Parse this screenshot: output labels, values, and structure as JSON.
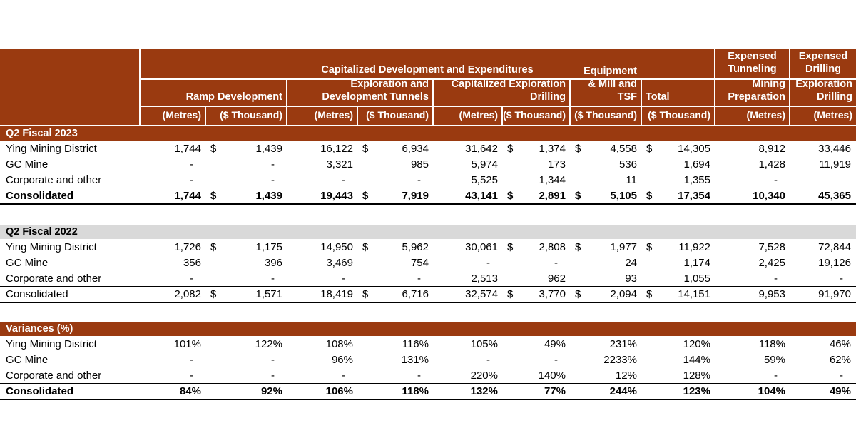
{
  "colors": {
    "header_bg": "#9A3A10",
    "section_gray_bg": "#D9D9D9",
    "header_text": "#FFFFFF"
  },
  "header": {
    "group_main": "Capitalized Development and Expenditures",
    "group_tunneling": "Expensed Tunneling",
    "group_drilling": "Expensed Drilling",
    "sub": {
      "ramp": "Ramp Development",
      "tunnels": "Exploration and Development Tunnels",
      "cap_drilling": "Capitalized Exploration Drilling",
      "equipment": "Equipment & Mill and TSF",
      "total": "Total",
      "mining_prep": "Mining Preparation",
      "expl_drilling": "Exploration Drilling"
    },
    "units": [
      "(Metres)",
      "($ Thousand)",
      "(Metres)",
      "($ Thousand)",
      "(Metres)",
      "($ Thousand)",
      "($ Thousand)",
      "($ Thousand)",
      "(Metres)",
      "(Metres)"
    ]
  },
  "sections": [
    {
      "title": "Q2 Fiscal 2023",
      "rows": [
        {
          "label": "Ying Mining District",
          "cells": [
            {
              "v": "1,744"
            },
            {
              "d": "$",
              "v": "1,439"
            },
            {
              "v": "16,122"
            },
            {
              "d": "$",
              "v": "6,934"
            },
            {
              "v": "31,642"
            },
            {
              "d": "$",
              "v": "1,374"
            },
            {
              "d": "$",
              "v": "4,558"
            },
            {
              "d": "$",
              "v": "14,305"
            },
            {
              "v": "8,912"
            },
            {
              "v": "33,446"
            }
          ]
        },
        {
          "label": "GC Mine",
          "cells": [
            {
              "v": "-"
            },
            {
              "v": "-"
            },
            {
              "v": "3,321"
            },
            {
              "v": "985"
            },
            {
              "v": "5,974"
            },
            {
              "v": "173"
            },
            {
              "v": "536"
            },
            {
              "v": "1,694"
            },
            {
              "v": "1,428"
            },
            {
              "v": "11,919"
            }
          ]
        },
        {
          "label": "Corporate and other",
          "cells": [
            {
              "v": "-"
            },
            {
              "v": "-"
            },
            {
              "v": "-"
            },
            {
              "v": "-"
            },
            {
              "v": "5,525"
            },
            {
              "v": "1,344"
            },
            {
              "v": "11"
            },
            {
              "v": "1,355"
            },
            {
              "v": "-"
            },
            {
              "v": ""
            }
          ]
        },
        {
          "label": "Consolidated",
          "cells": [
            {
              "v": "1,744"
            },
            {
              "d": "$",
              "v": "1,439"
            },
            {
              "v": "19,443"
            },
            {
              "d": "$",
              "v": "7,919"
            },
            {
              "v": "43,141"
            },
            {
              "d": "$",
              "v": "2,891"
            },
            {
              "d": "$",
              "v": "5,105"
            },
            {
              "d": "$",
              "v": "17,354"
            },
            {
              "v": "10,340"
            },
            {
              "v": "45,365"
            }
          ]
        }
      ]
    },
    {
      "title": "Q2 Fiscal 2022",
      "rows": [
        {
          "label": "Ying Mining District",
          "cells": [
            {
              "v": "1,726"
            },
            {
              "d": "$",
              "v": "1,175"
            },
            {
              "v": "14,950"
            },
            {
              "d": "$",
              "v": "5,962"
            },
            {
              "v": "30,061"
            },
            {
              "d": "$",
              "v": "2,808"
            },
            {
              "d": "$",
              "v": "1,977"
            },
            {
              "d": "$",
              "v": "11,922"
            },
            {
              "v": "7,528"
            },
            {
              "v": "72,844"
            }
          ]
        },
        {
          "label": "GC Mine",
          "cells": [
            {
              "v": "356"
            },
            {
              "v": "396"
            },
            {
              "v": "3,469"
            },
            {
              "v": "754"
            },
            {
              "v": "-"
            },
            {
              "v": "-"
            },
            {
              "v": "24"
            },
            {
              "v": "1,174"
            },
            {
              "v": "2,425"
            },
            {
              "v": "19,126"
            }
          ]
        },
        {
          "label": "Corporate and other",
          "cells": [
            {
              "v": "-"
            },
            {
              "v": "-"
            },
            {
              "v": "-"
            },
            {
              "v": "-"
            },
            {
              "v": "2,513"
            },
            {
              "v": "962"
            },
            {
              "v": "93"
            },
            {
              "v": "1,055"
            },
            {
              "v": "-"
            },
            {
              "v": "-"
            }
          ]
        },
        {
          "label": "Consolidated",
          "cells": [
            {
              "v": "2,082"
            },
            {
              "d": "$",
              "v": "1,571"
            },
            {
              "v": "18,419"
            },
            {
              "d": "$",
              "v": "6,716"
            },
            {
              "v": "32,574"
            },
            {
              "d": "$",
              "v": "3,770"
            },
            {
              "d": "$",
              "v": "2,094"
            },
            {
              "d": "$",
              "v": "14,151"
            },
            {
              "v": "9,953"
            },
            {
              "v": "91,970"
            }
          ]
        }
      ]
    },
    {
      "title": "Variances (%)",
      "rows": [
        {
          "label": "Ying Mining District",
          "cells": [
            {
              "v": "101%"
            },
            {
              "v": "122%"
            },
            {
              "v": "108%"
            },
            {
              "v": "116%"
            },
            {
              "v": "105%"
            },
            {
              "v": "49%"
            },
            {
              "v": "231%"
            },
            {
              "v": "120%"
            },
            {
              "v": "118%"
            },
            {
              "v": "46%"
            }
          ]
        },
        {
          "label": "GC Mine",
          "cells": [
            {
              "v": "-"
            },
            {
              "v": "-"
            },
            {
              "v": "96%"
            },
            {
              "v": "131%"
            },
            {
              "v": "-"
            },
            {
              "v": "-"
            },
            {
              "v": "2233%"
            },
            {
              "v": "144%"
            },
            {
              "v": "59%"
            },
            {
              "v": "62%"
            }
          ]
        },
        {
          "label": "Corporate and other",
          "cells": [
            {
              "v": "-"
            },
            {
              "v": "-"
            },
            {
              "v": "-"
            },
            {
              "v": "-"
            },
            {
              "v": "220%"
            },
            {
              "v": "140%"
            },
            {
              "v": "12%"
            },
            {
              "v": "128%"
            },
            {
              "v": "-"
            },
            {
              "v": "-"
            }
          ]
        },
        {
          "label": "Consolidated",
          "cells": [
            {
              "v": "84%"
            },
            {
              "v": "92%"
            },
            {
              "v": "106%"
            },
            {
              "v": "118%"
            },
            {
              "v": "132%"
            },
            {
              "v": "77%"
            },
            {
              "v": "244%"
            },
            {
              "v": "123%"
            },
            {
              "v": "104%"
            },
            {
              "v": "49%"
            }
          ]
        }
      ]
    }
  ]
}
